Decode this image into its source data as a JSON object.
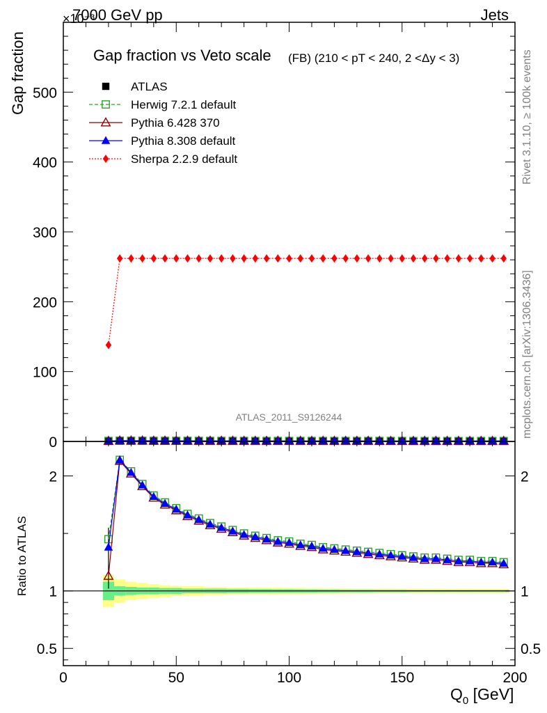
{
  "header": {
    "left": "7000 GeV pp",
    "right": "Jets",
    "exponent": "×10⁻³"
  },
  "side_labels": {
    "rivet": "Rivet 3.1.10, ≥ 100k events",
    "mcplots": "mcplots.cern.ch [arXiv:1306.3436]"
  },
  "watermark": "ATLAS_2011_S9126244",
  "colors": {
    "atlas": "#000000",
    "herwig": "#2ca02c",
    "pythia6": "#8b0000",
    "pythia8": "#0000ff",
    "sherpa": "#ff0000",
    "band_inner": "#66ee88",
    "band_outer": "#ffff88"
  },
  "chart_data": [
    {
      "type": "line",
      "title": "Gap fraction vs Veto scale",
      "subtitle": "(FB) (210 < pT < 240, 2 <Δy < 3)",
      "ylabel": "Gap fraction",
      "xlim": [
        0,
        200
      ],
      "ylim": [
        0,
        600
      ],
      "yticks": [
        0,
        100,
        200,
        300,
        400,
        500
      ],
      "x": [
        20,
        25,
        30,
        35,
        40,
        45,
        50,
        55,
        60,
        65,
        70,
        75,
        80,
        85,
        90,
        95,
        100,
        105,
        110,
        115,
        120,
        125,
        130,
        135,
        140,
        145,
        150,
        155,
        160,
        165,
        170,
        175,
        180,
        185,
        190,
        195
      ],
      "series": [
        {
          "name": "ATLAS",
          "values": [
            0.5,
            0.5,
            0.5,
            0.5,
            0.5,
            0.5,
            0.5,
            0.5,
            0.5,
            0.5,
            0.5,
            0.5,
            0.5,
            0.5,
            0.5,
            0.5,
            0.5,
            0.5,
            0.5,
            0.5,
            0.5,
            0.5,
            0.5,
            0.5,
            0.5,
            0.5,
            0.5,
            0.5,
            0.5,
            0.5,
            0.5,
            0.5,
            0.5,
            0.5,
            0.5,
            0.5
          ]
        },
        {
          "name": "Herwig 7.2.1 default",
          "values": [
            0.7,
            1.1,
            1.0,
            1.0,
            0.9,
            0.9,
            0.9,
            0.9,
            0.8,
            0.8,
            0.8,
            0.8,
            0.8,
            0.7,
            0.7,
            0.7,
            0.7,
            0.7,
            0.7,
            0.7,
            0.7,
            0.7,
            0.7,
            0.7,
            0.7,
            0.7,
            0.7,
            0.6,
            0.6,
            0.6,
            0.6,
            0.6,
            0.6,
            0.6,
            0.6,
            0.6
          ]
        },
        {
          "name": "Pythia 6.428 370",
          "values": [
            0.6,
            1.1,
            1.0,
            1.0,
            0.9,
            0.9,
            0.9,
            0.9,
            0.8,
            0.8,
            0.8,
            0.8,
            0.7,
            0.7,
            0.7,
            0.7,
            0.7,
            0.7,
            0.7,
            0.7,
            0.7,
            0.7,
            0.7,
            0.7,
            0.6,
            0.6,
            0.6,
            0.6,
            0.6,
            0.6,
            0.6,
            0.6,
            0.6,
            0.6,
            0.6,
            0.6
          ]
        },
        {
          "name": "Pythia 8.308 default",
          "values": [
            0.7,
            1.1,
            1.0,
            1.0,
            0.9,
            0.9,
            0.9,
            0.9,
            0.8,
            0.8,
            0.8,
            0.8,
            0.7,
            0.7,
            0.7,
            0.7,
            0.7,
            0.7,
            0.7,
            0.7,
            0.7,
            0.7,
            0.7,
            0.7,
            0.6,
            0.6,
            0.6,
            0.6,
            0.6,
            0.6,
            0.6,
            0.6,
            0.6,
            0.6,
            0.6,
            0.6
          ]
        },
        {
          "name": "Sherpa 2.2.9 default",
          "values": [
            138,
            262,
            262,
            262,
            262,
            262,
            262,
            262,
            262,
            262,
            262,
            262,
            262,
            262,
            262,
            262,
            262,
            262,
            262,
            262,
            262,
            262,
            262,
            262,
            262,
            262,
            262,
            262,
            262,
            262,
            262,
            262,
            262,
            262,
            262,
            262
          ]
        }
      ],
      "legend": "top-left"
    },
    {
      "type": "line",
      "ylabel": "Ratio to ATLAS",
      "xlabel": "Q",
      "xlabel_sub": "0",
      "xlabel_unit": " [GeV]",
      "xlim": [
        0,
        200
      ],
      "xticks": [
        0,
        50,
        100,
        150,
        200
      ],
      "ylim": [
        0.35,
        2.3
      ],
      "yticks": [
        0.5,
        1,
        2
      ],
      "x": [
        20,
        25,
        30,
        35,
        40,
        45,
        50,
        55,
        60,
        65,
        70,
        75,
        80,
        85,
        90,
        95,
        100,
        105,
        110,
        115,
        120,
        125,
        130,
        135,
        140,
        145,
        150,
        155,
        160,
        165,
        170,
        175,
        180,
        185,
        190,
        195
      ],
      "series": [
        {
          "name": "Herwig 7.2.1 default",
          "values": [
            1.45,
            2.14,
            2.04,
            1.93,
            1.83,
            1.77,
            1.72,
            1.67,
            1.63,
            1.59,
            1.56,
            1.53,
            1.5,
            1.48,
            1.46,
            1.44,
            1.43,
            1.41,
            1.4,
            1.38,
            1.37,
            1.36,
            1.35,
            1.34,
            1.33,
            1.32,
            1.31,
            1.3,
            1.29,
            1.29,
            1.28,
            1.27,
            1.27,
            1.26,
            1.26,
            1.25
          ]
        },
        {
          "name": "Pythia 6.428 370",
          "values": [
            1.13,
            2.13,
            2.02,
            1.91,
            1.81,
            1.75,
            1.7,
            1.65,
            1.61,
            1.57,
            1.54,
            1.51,
            1.48,
            1.46,
            1.44,
            1.42,
            1.41,
            1.39,
            1.38,
            1.36,
            1.35,
            1.34,
            1.33,
            1.32,
            1.31,
            1.3,
            1.29,
            1.28,
            1.27,
            1.27,
            1.26,
            1.25,
            1.25,
            1.24,
            1.24,
            1.23
          ]
        },
        {
          "name": "Pythia 8.308 default",
          "values": [
            1.38,
            2.14,
            2.03,
            1.92,
            1.82,
            1.76,
            1.71,
            1.66,
            1.62,
            1.58,
            1.55,
            1.52,
            1.49,
            1.47,
            1.45,
            1.43,
            1.42,
            1.4,
            1.39,
            1.37,
            1.36,
            1.35,
            1.34,
            1.33,
            1.32,
            1.31,
            1.3,
            1.29,
            1.28,
            1.28,
            1.27,
            1.26,
            1.26,
            1.25,
            1.25,
            1.24
          ]
        }
      ],
      "band": {
        "x_edges": [
          17.5,
          22.5,
          27.5,
          32.5,
          37.5,
          42.5,
          47.5,
          52.5,
          57.5,
          62.5,
          67.5,
          72.5,
          77.5,
          82.5,
          87.5,
          92.5,
          97.5,
          102.5,
          107.5,
          112.5,
          117.5,
          122.5,
          127.5,
          132.5,
          137.5,
          142.5,
          147.5,
          152.5,
          157.5,
          162.5,
          167.5,
          172.5,
          177.5,
          182.5,
          187.5,
          192.5,
          197.5
        ],
        "inner": [
          0.08,
          0.04,
          0.035,
          0.03,
          0.03,
          0.025,
          0.025,
          0.02,
          0.02,
          0.02,
          0.02,
          0.018,
          0.018,
          0.016,
          0.016,
          0.015,
          0.015,
          0.014,
          0.014,
          0.013,
          0.013,
          0.012,
          0.012,
          0.012,
          0.011,
          0.011,
          0.011,
          0.01,
          0.01,
          0.01,
          0.01,
          0.01,
          0.01,
          0.01,
          0.01,
          0.01
        ],
        "outer": [
          0.14,
          0.1,
          0.08,
          0.07,
          0.06,
          0.05,
          0.045,
          0.04,
          0.04,
          0.035,
          0.035,
          0.03,
          0.03,
          0.03,
          0.028,
          0.028,
          0.026,
          0.026,
          0.025,
          0.024,
          0.024,
          0.023,
          0.022,
          0.022,
          0.021,
          0.021,
          0.02,
          0.02,
          0.02,
          0.02,
          0.019,
          0.019,
          0.019,
          0.018,
          0.018,
          0.018
        ]
      }
    }
  ]
}
